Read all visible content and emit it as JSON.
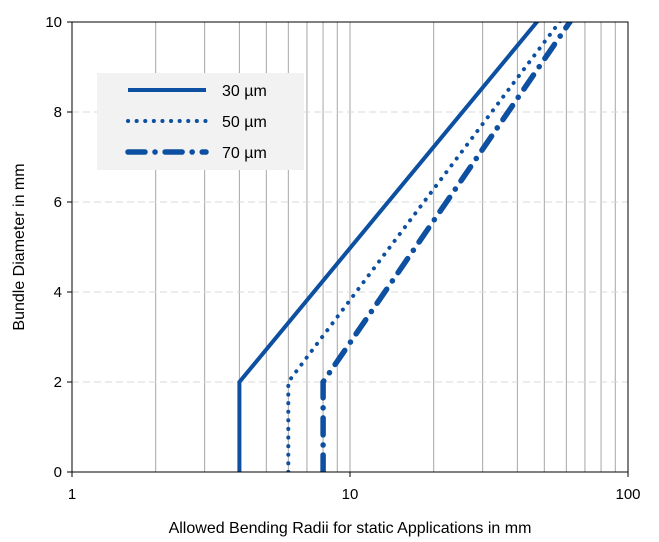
{
  "chart_data": {
    "type": "line",
    "title": "",
    "xlabel": "Allowed Bending Radii for static Applications in mm",
    "ylabel": "Bundle Diameter in mm",
    "x_scale": "log",
    "xlim": [
      1,
      100
    ],
    "ylim": [
      0,
      10
    ],
    "x_ticks": [
      1,
      10,
      100
    ],
    "x_tick_labels": [
      "1",
      "10",
      "100"
    ],
    "y_ticks": [
      0,
      2,
      4,
      6,
      8,
      10
    ],
    "y_tick_labels": [
      "0",
      "2",
      "4",
      "6",
      "8",
      "10"
    ],
    "grid": {
      "x_minor_vertical": true,
      "y_major_dashed": true
    },
    "legend_position": "top-left",
    "color": "#0d4fa0",
    "series": [
      {
        "name": "30 µm",
        "style": "solid",
        "points": [
          [
            4,
            0
          ],
          [
            4,
            2
          ],
          [
            50,
            10.2
          ]
        ]
      },
      {
        "name": "50 µm",
        "style": "dotted",
        "points": [
          [
            6,
            0
          ],
          [
            6,
            2
          ],
          [
            60,
            10.2
          ]
        ]
      },
      {
        "name": "70 µm",
        "style": "dashdot",
        "points": [
          [
            8,
            0
          ],
          [
            8,
            2
          ],
          [
            65,
            10.2
          ]
        ]
      }
    ]
  }
}
